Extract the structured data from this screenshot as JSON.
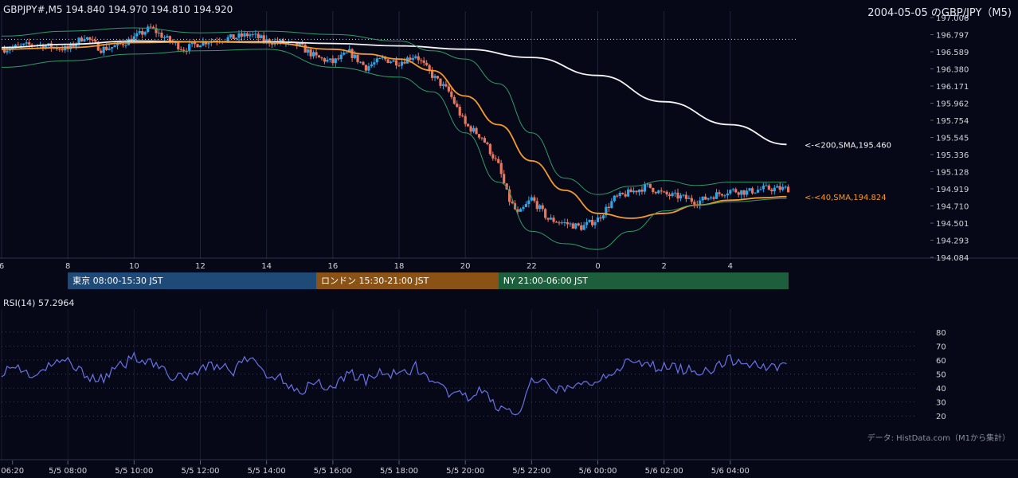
{
  "header": {
    "symbol_line": "GBPJPY#,M5 194.840 194.970 194.810 194.920",
    "title_right": "2004-05-05 のGBP/JPY（M5)"
  },
  "sessions": [
    {
      "label": "東京 08:00-15:30 JST",
      "color": "#1f4a78",
      "start": 8.0,
      "end": 15.5
    },
    {
      "label": "ロンドン 15:30-21:00 JST",
      "color": "#8a5214",
      "start": 15.5,
      "end": 21.0
    },
    {
      "label": "NY 21:00-06:00 JST",
      "color": "#1d5e3c",
      "start": 21.0,
      "end": 30.0
    }
  ],
  "rsi_label": "RSI(14) 57.2964",
  "source_note": "データ: HistData.com（M1から集計）",
  "chart_data": {
    "type": "candlestick",
    "price_axis": {
      "min": 194.084,
      "max": 197.006,
      "ticks": [
        "197.006",
        "196.797",
        "196.589",
        "196.380",
        "196.171",
        "195.962",
        "195.754",
        "195.545",
        "195.336",
        "195.128",
        "194.919",
        "194.710",
        "194.501",
        "194.293",
        "194.084"
      ]
    },
    "hour_axis": {
      "start_hour": 6.0,
      "end_hour": 30.0,
      "ticks": [
        {
          "h": 6,
          "label": "6"
        },
        {
          "h": 8,
          "label": "8"
        },
        {
          "h": 10,
          "label": "10"
        },
        {
          "h": 12,
          "label": "12"
        },
        {
          "h": 14,
          "label": "14"
        },
        {
          "h": 16,
          "label": "16"
        },
        {
          "h": 18,
          "label": "18"
        },
        {
          "h": 20,
          "label": "20"
        },
        {
          "h": 22,
          "label": "22"
        },
        {
          "h": 24,
          "label": "0"
        },
        {
          "h": 26,
          "label": "2"
        },
        {
          "h": 28,
          "label": "4"
        }
      ]
    },
    "time_axis": [
      {
        "h": 6.33,
        "label": "06:20"
      },
      {
        "h": 8,
        "label": "5/5 08:00"
      },
      {
        "h": 10,
        "label": "5/5 10:00"
      },
      {
        "h": 12,
        "label": "5/5 12:00"
      },
      {
        "h": 14,
        "label": "5/5 14:00"
      },
      {
        "h": 16,
        "label": "5/5 16:00"
      },
      {
        "h": 18,
        "label": "5/5 18:00"
      },
      {
        "h": 20,
        "label": "5/5 20:00"
      },
      {
        "h": 22,
        "label": "5/5 22:00"
      },
      {
        "h": 24,
        "label": "5/6 00:00"
      },
      {
        "h": 26,
        "label": "5/6 02:00"
      },
      {
        "h": 28,
        "label": "5/6 04:00"
      }
    ],
    "reference_line": {
      "value": 196.74,
      "style": "dotted"
    },
    "close_path": [
      [
        6.0,
        196.62
      ],
      [
        7.0,
        196.68
      ],
      [
        8.0,
        196.62
      ],
      [
        8.5,
        196.78
      ],
      [
        9.0,
        196.62
      ],
      [
        9.5,
        196.66
      ],
      [
        10.0,
        196.76
      ],
      [
        10.5,
        196.88
      ],
      [
        11.0,
        196.74
      ],
      [
        11.5,
        196.62
      ],
      [
        12.0,
        196.7
      ],
      [
        12.5,
        196.74
      ],
      [
        13.0,
        196.76
      ],
      [
        13.5,
        196.8
      ],
      [
        14.0,
        196.72
      ],
      [
        14.5,
        196.7
      ],
      [
        15.0,
        196.66
      ],
      [
        15.5,
        196.52
      ],
      [
        16.0,
        196.46
      ],
      [
        16.5,
        196.58
      ],
      [
        17.0,
        196.4
      ],
      [
        17.5,
        196.5
      ],
      [
        18.0,
        196.46
      ],
      [
        18.5,
        196.55
      ],
      [
        19.0,
        196.3
      ],
      [
        19.5,
        196.1
      ],
      [
        20.0,
        195.7
      ],
      [
        20.5,
        195.55
      ],
      [
        21.0,
        195.2
      ],
      [
        21.3,
        194.8
      ],
      [
        21.6,
        194.6
      ],
      [
        22.0,
        194.8
      ],
      [
        22.5,
        194.55
      ],
      [
        23.0,
        194.5
      ],
      [
        23.5,
        194.45
      ],
      [
        24.0,
        194.55
      ],
      [
        24.5,
        194.8
      ],
      [
        25.0,
        194.88
      ],
      [
        25.5,
        194.95
      ],
      [
        26.0,
        194.85
      ],
      [
        26.5,
        194.82
      ],
      [
        27.0,
        194.76
      ],
      [
        27.5,
        194.84
      ],
      [
        28.0,
        194.9
      ],
      [
        28.5,
        194.88
      ],
      [
        29.0,
        194.92
      ]
    ],
    "series": [
      {
        "name": "<-<200,SMA,195.460",
        "color": "#f4f4f4",
        "last": 195.46,
        "points": [
          [
            6.0,
            196.64
          ],
          [
            8.0,
            196.68
          ],
          [
            10.0,
            196.72
          ],
          [
            12.0,
            196.71
          ],
          [
            14.0,
            196.71
          ],
          [
            16.0,
            196.69
          ],
          [
            18.0,
            196.66
          ],
          [
            20.0,
            196.62
          ],
          [
            22.0,
            196.52
          ],
          [
            24.0,
            196.3
          ],
          [
            26.0,
            195.98
          ],
          [
            28.0,
            195.7
          ],
          [
            29.7,
            195.46
          ]
        ]
      },
      {
        "name": "<-<40,SMA,194.824",
        "color": "#f59a2c",
        "last": 194.824,
        "points": [
          [
            6.0,
            196.62
          ],
          [
            8.0,
            196.64
          ],
          [
            10.0,
            196.7
          ],
          [
            12.0,
            196.71
          ],
          [
            14.0,
            196.7
          ],
          [
            16.0,
            196.62
          ],
          [
            17.0,
            196.56
          ],
          [
            18.0,
            196.5
          ],
          [
            19.0,
            196.36
          ],
          [
            20.0,
            196.05
          ],
          [
            21.0,
            195.7
          ],
          [
            22.0,
            195.26
          ],
          [
            23.0,
            194.9
          ],
          [
            24.0,
            194.62
          ],
          [
            25.0,
            194.56
          ],
          [
            26.0,
            194.62
          ],
          [
            27.0,
            194.72
          ],
          [
            28.0,
            194.78
          ],
          [
            29.0,
            194.81
          ],
          [
            29.7,
            194.824
          ]
        ]
      },
      {
        "name": "bb_upper",
        "color": "#2f9a66",
        "points": [
          [
            6.0,
            196.78
          ],
          [
            8.0,
            196.84
          ],
          [
            10.0,
            196.88
          ],
          [
            12.0,
            196.82
          ],
          [
            14.0,
            196.84
          ],
          [
            16.0,
            196.8
          ],
          [
            18.0,
            196.72
          ],
          [
            19.0,
            196.6
          ],
          [
            20.0,
            196.5
          ],
          [
            21.0,
            196.2
          ],
          [
            22.0,
            195.6
          ],
          [
            23.0,
            195.05
          ],
          [
            24.0,
            194.85
          ],
          [
            25.0,
            194.95
          ],
          [
            26.0,
            195.02
          ],
          [
            27.0,
            194.96
          ],
          [
            28.0,
            195.0
          ],
          [
            29.7,
            195.0
          ]
        ]
      },
      {
        "name": "bb_lower",
        "color": "#2f9a66",
        "points": [
          [
            6.0,
            196.4
          ],
          [
            8.0,
            196.48
          ],
          [
            10.0,
            196.56
          ],
          [
            12.0,
            196.6
          ],
          [
            14.0,
            196.62
          ],
          [
            16.0,
            196.4
          ],
          [
            18.0,
            196.28
          ],
          [
            19.0,
            196.1
          ],
          [
            20.0,
            195.6
          ],
          [
            21.0,
            195.0
          ],
          [
            22.0,
            194.4
          ],
          [
            23.0,
            194.25
          ],
          [
            24.0,
            194.18
          ],
          [
            25.0,
            194.4
          ],
          [
            26.0,
            194.65
          ],
          [
            27.0,
            194.72
          ],
          [
            28.0,
            194.76
          ],
          [
            29.7,
            194.8
          ]
        ]
      }
    ],
    "rsi": {
      "name": "RSI(14) 57.2964",
      "ticks": [
        80,
        70,
        60,
        50,
        40,
        30,
        20
      ],
      "ylim": [
        15,
        85
      ],
      "last": 57.2964,
      "points": [
        [
          6.0,
          52
        ],
        [
          6.5,
          55
        ],
        [
          7.0,
          48
        ],
        [
          7.5,
          56
        ],
        [
          8.0,
          60
        ],
        [
          8.5,
          50
        ],
        [
          9.0,
          46
        ],
        [
          9.5,
          54
        ],
        [
          10.0,
          62
        ],
        [
          10.5,
          60
        ],
        [
          11.0,
          50
        ],
        [
          11.5,
          46
        ],
        [
          12.0,
          54
        ],
        [
          12.5,
          57
        ],
        [
          13.0,
          52
        ],
        [
          13.5,
          62
        ],
        [
          14.0,
          50
        ],
        [
          14.5,
          46
        ],
        [
          15.0,
          38
        ],
        [
          15.5,
          44
        ],
        [
          16.0,
          40
        ],
        [
          16.5,
          52
        ],
        [
          17.0,
          45
        ],
        [
          17.5,
          52
        ],
        [
          18.0,
          48
        ],
        [
          18.5,
          56
        ],
        [
          19.0,
          42
        ],
        [
          19.5,
          37
        ],
        [
          20.0,
          33
        ],
        [
          20.5,
          38
        ],
        [
          21.0,
          26
        ],
        [
          21.3,
          24
        ],
        [
          21.6,
          20
        ],
        [
          22.0,
          44
        ],
        [
          22.5,
          42
        ],
        [
          23.0,
          38
        ],
        [
          23.5,
          42
        ],
        [
          24.0,
          46
        ],
        [
          24.5,
          54
        ],
        [
          25.0,
          58
        ],
        [
          25.5,
          56
        ],
        [
          26.0,
          55
        ],
        [
          26.5,
          54
        ],
        [
          27.0,
          52
        ],
        [
          27.5,
          54
        ],
        [
          28.0,
          60
        ],
        [
          28.5,
          58
        ],
        [
          29.0,
          55
        ],
        [
          29.7,
          57.2964
        ]
      ]
    }
  }
}
